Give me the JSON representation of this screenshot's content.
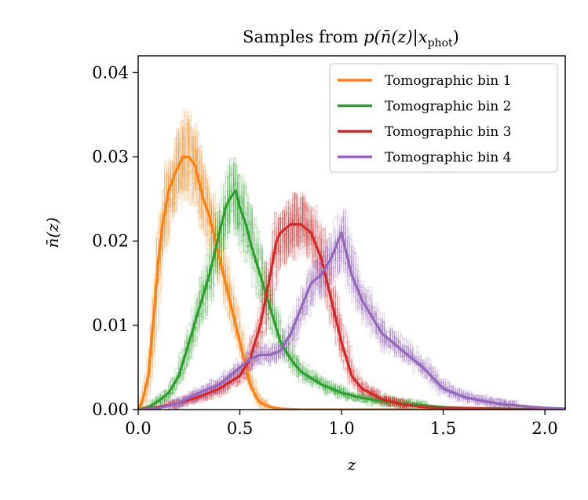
{
  "chart_data": {
    "type": "line",
    "title": "Samples from p(n̄(z)|x_phot)",
    "title_prefix": "Samples from ",
    "title_math": "p(n̄(z)|x",
    "title_sub": "phot",
    "title_suffix": ")",
    "xlabel": "z",
    "ylabel": "n̄(z)",
    "xlim": [
      0.0,
      2.1
    ],
    "ylim": [
      0.0,
      0.042
    ],
    "xticks": [
      0.0,
      0.5,
      1.0,
      1.5,
      2.0
    ],
    "xtick_labels": [
      "0.0",
      "0.5",
      "1.0",
      "1.5",
      "2.0"
    ],
    "yticks": [
      0.0,
      0.01,
      0.02,
      0.03,
      0.04
    ],
    "ytick_labels": [
      "0.00",
      "0.01",
      "0.02",
      "0.03",
      "0.04"
    ],
    "grid": false,
    "legend_position": "top-right",
    "series": [
      {
        "name": "Tomographic bin 1",
        "color": "#ff7f0e",
        "x": [
          0.0,
          0.02,
          0.05,
          0.08,
          0.1,
          0.12,
          0.15,
          0.18,
          0.2,
          0.22,
          0.25,
          0.28,
          0.3,
          0.32,
          0.35,
          0.38,
          0.4,
          0.42,
          0.45,
          0.48,
          0.5,
          0.53,
          0.55,
          0.58,
          0.6,
          0.65,
          0.7,
          0.8,
          0.9,
          1.0,
          2.1
        ],
        "values": [
          0.0,
          0.001,
          0.004,
          0.012,
          0.018,
          0.022,
          0.026,
          0.028,
          0.029,
          0.03,
          0.03,
          0.029,
          0.027,
          0.025,
          0.023,
          0.02,
          0.018,
          0.016,
          0.013,
          0.01,
          0.008,
          0.005,
          0.003,
          0.0015,
          0.0008,
          0.0003,
          0.0001,
          0.0,
          0.0,
          0.0,
          0.0
        ]
      },
      {
        "name": "Tomographic bin 2",
        "color": "#2ca02c",
        "x": [
          0.0,
          0.05,
          0.1,
          0.15,
          0.2,
          0.25,
          0.3,
          0.35,
          0.4,
          0.43,
          0.45,
          0.48,
          0.5,
          0.53,
          0.55,
          0.6,
          0.65,
          0.7,
          0.75,
          0.8,
          0.9,
          1.0,
          1.1,
          1.2,
          1.3,
          1.4,
          1.5,
          1.6,
          1.8,
          2.1
        ],
        "values": [
          0.0,
          0.0003,
          0.001,
          0.002,
          0.004,
          0.008,
          0.012,
          0.016,
          0.021,
          0.024,
          0.025,
          0.026,
          0.024,
          0.022,
          0.02,
          0.016,
          0.012,
          0.008,
          0.006,
          0.0045,
          0.003,
          0.002,
          0.0014,
          0.001,
          0.0007,
          0.0005,
          0.0003,
          0.0002,
          0.0001,
          0.0
        ]
      },
      {
        "name": "Tomographic bin 3",
        "color": "#d62728",
        "x": [
          0.0,
          0.1,
          0.2,
          0.3,
          0.4,
          0.5,
          0.55,
          0.6,
          0.65,
          0.68,
          0.7,
          0.75,
          0.8,
          0.85,
          0.9,
          0.95,
          1.0,
          1.05,
          1.1,
          1.2,
          1.3,
          1.4,
          1.5,
          1.7,
          2.1
        ],
        "values": [
          0.0,
          0.0003,
          0.0008,
          0.0015,
          0.0025,
          0.004,
          0.006,
          0.01,
          0.016,
          0.02,
          0.021,
          0.022,
          0.022,
          0.021,
          0.018,
          0.013,
          0.008,
          0.004,
          0.0025,
          0.0012,
          0.0006,
          0.0003,
          0.0002,
          0.0001,
          0.0
        ]
      },
      {
        "name": "Tomographic bin 4",
        "color": "#9467bd",
        "x": [
          0.0,
          0.1,
          0.2,
          0.3,
          0.4,
          0.5,
          0.55,
          0.6,
          0.65,
          0.7,
          0.75,
          0.8,
          0.85,
          0.9,
          0.95,
          1.0,
          1.05,
          1.1,
          1.15,
          1.2,
          1.3,
          1.4,
          1.5,
          1.6,
          1.7,
          1.8,
          2.0,
          2.1
        ],
        "values": [
          0.0,
          0.0002,
          0.0008,
          0.002,
          0.003,
          0.005,
          0.006,
          0.0065,
          0.0065,
          0.007,
          0.009,
          0.012,
          0.015,
          0.016,
          0.018,
          0.021,
          0.016,
          0.013,
          0.011,
          0.009,
          0.007,
          0.005,
          0.0025,
          0.0015,
          0.001,
          0.0006,
          0.0002,
          0.0001
        ]
      }
    ]
  }
}
